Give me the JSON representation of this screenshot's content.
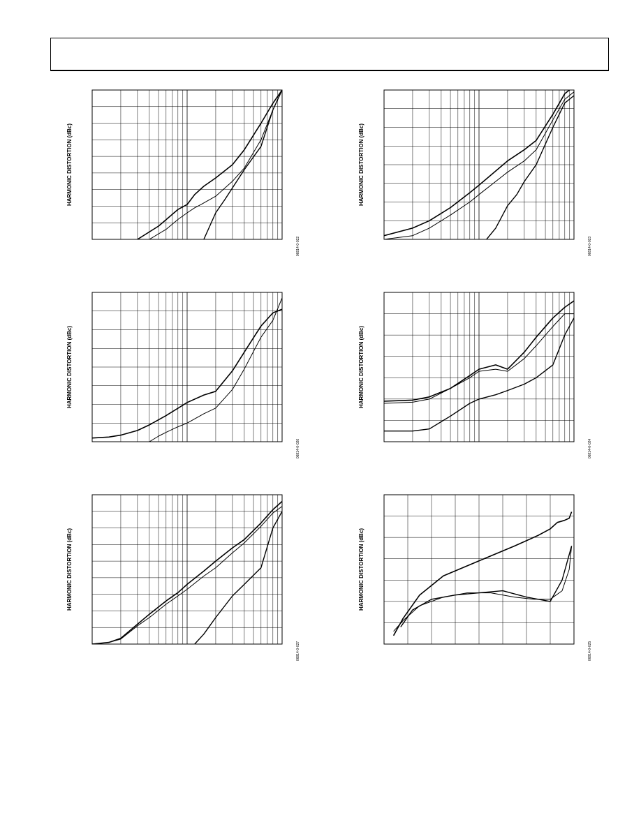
{
  "page": {
    "header_label": ""
  },
  "colors": {
    "ink": "#000000",
    "paper": "#ffffff"
  },
  "chart_data": [
    {
      "id": "plot-1",
      "type": "line",
      "ylabel": "HARMONIC DISTORTION (dBc)",
      "figure_id": "06814-0-022",
      "x_scale": "log",
      "grid": "log-x",
      "xlim": [
        1,
        100
      ],
      "ylim": [
        0,
        9
      ],
      "series": [
        {
          "x": [
            3,
            5,
            8,
            10,
            12,
            15,
            20,
            30,
            40,
            60,
            80,
            100
          ],
          "y": [
            0,
            0.8,
            1.8,
            2.1,
            2.7,
            3.2,
            3.7,
            4.5,
            5.4,
            7.0,
            8.2,
            9.0
          ]
        },
        {
          "x": [
            4,
            6,
            8,
            10,
            12,
            14,
            20,
            30,
            40,
            60,
            80,
            100
          ],
          "y": [
            0,
            0.6,
            1.2,
            1.6,
            1.9,
            2.1,
            2.6,
            3.5,
            4.3,
            6.0,
            7.8,
            9.0
          ]
        },
        {
          "x": [
            15,
            20,
            25,
            30,
            40,
            60,
            80,
            100
          ],
          "y": [
            0,
            1.6,
            2.4,
            3.1,
            4.2,
            5.6,
            7.8,
            9.0
          ]
        }
      ]
    },
    {
      "id": "plot-2",
      "type": "line",
      "ylabel": "HARMONIC DISTORTION (dBc)",
      "figure_id": "06814-0-023",
      "x_scale": "log",
      "grid": "log-x",
      "xlim": [
        1,
        100
      ],
      "ylim": [
        0,
        8
      ],
      "series": [
        {
          "x": [
            1,
            2,
            3,
            5,
            8,
            10,
            20,
            30,
            40,
            60,
            80,
            100
          ],
          "y": [
            0.2,
            0.6,
            1.0,
            1.7,
            2.5,
            2.9,
            4.2,
            4.8,
            5.3,
            6.7,
            7.8,
            8.2
          ]
        },
        {
          "x": [
            1,
            2,
            3,
            5,
            8,
            10,
            20,
            30,
            40,
            60,
            80,
            100
          ],
          "y": [
            0,
            0.2,
            0.6,
            1.3,
            2.0,
            2.4,
            3.6,
            4.2,
            4.8,
            6.4,
            7.5,
            7.9
          ]
        },
        {
          "x": [
            12,
            15,
            20,
            25,
            30,
            40,
            60,
            80,
            100
          ],
          "y": [
            0,
            0.6,
            1.8,
            2.4,
            3.1,
            4.0,
            6.0,
            7.3,
            7.7
          ]
        }
      ]
    },
    {
      "id": "plot-3",
      "type": "line",
      "ylabel": "HARMONIC DISTORTION (dBc)",
      "figure_id": "06814-0-026",
      "x_scale": "log",
      "grid": "log-x",
      "xlim": [
        1,
        100
      ],
      "ylim": [
        0,
        8
      ],
      "series": [
        {
          "x": [
            1,
            1.5,
            2,
            3,
            4,
            6,
            10,
            15,
            20,
            30,
            40,
            60,
            80,
            100
          ],
          "y": [
            0.2,
            0.25,
            0.35,
            0.6,
            0.9,
            1.4,
            2.1,
            2.5,
            2.7,
            3.8,
            4.8,
            6.2,
            6.9,
            7.1
          ]
        },
        {
          "x": [
            4,
            5,
            6,
            8,
            10,
            15,
            20,
            30,
            40,
            60,
            80,
            100
          ],
          "y": [
            0,
            0.3,
            0.5,
            0.8,
            1.0,
            1.5,
            1.8,
            2.8,
            3.9,
            5.6,
            6.5,
            7.7
          ]
        }
      ]
    },
    {
      "id": "plot-4",
      "type": "line",
      "ylabel": "HARMONIC DISTORTION (dBc)",
      "figure_id": "06814-0-024",
      "x_scale": "log",
      "grid": "log-x",
      "xlim": [
        1,
        100
      ],
      "ylim": [
        0,
        7
      ],
      "series": [
        {
          "x": [
            1,
            2,
            3,
            5,
            8,
            10,
            15,
            20,
            30,
            40,
            60,
            80,
            100
          ],
          "y": [
            1.9,
            1.95,
            2.1,
            2.5,
            3.1,
            3.4,
            3.6,
            3.4,
            4.2,
            4.9,
            5.8,
            6.3,
            6.6
          ]
        },
        {
          "x": [
            1,
            2,
            3,
            5,
            8,
            10,
            15,
            20,
            30,
            40,
            60,
            80,
            100
          ],
          "y": [
            1.8,
            1.85,
            2.0,
            2.5,
            3.0,
            3.3,
            3.4,
            3.3,
            3.9,
            4.5,
            5.4,
            6.0,
            6.0
          ]
        },
        {
          "x": [
            1,
            2,
            3,
            5,
            8,
            10,
            15,
            20,
            30,
            40,
            60,
            80,
            100
          ],
          "y": [
            0.5,
            0.5,
            0.6,
            1.2,
            1.8,
            2.0,
            2.2,
            2.4,
            2.7,
            3.0,
            3.6,
            5.0,
            5.8
          ]
        }
      ]
    },
    {
      "id": "plot-5",
      "type": "line",
      "ylabel": "HARMONIC DISTORTION (dBc)",
      "figure_id": "06814-0-027",
      "x_scale": "log",
      "grid": "log-x",
      "xlim": [
        1,
        100
      ],
      "ylim": [
        0,
        9
      ],
      "series": [
        {
          "x": [
            1,
            1.5,
            2,
            3,
            4,
            6,
            8,
            10,
            15,
            20,
            30,
            40,
            60,
            80,
            100
          ],
          "y": [
            0,
            0.1,
            0.35,
            1.2,
            1.8,
            2.6,
            3.1,
            3.6,
            4.4,
            5.0,
            5.8,
            6.3,
            7.3,
            8.1,
            8.6
          ]
        },
        {
          "x": [
            1,
            1.5,
            2,
            3,
            4,
            6,
            8,
            10,
            15,
            20,
            30,
            40,
            60,
            80,
            100
          ],
          "y": [
            0,
            0.1,
            0.3,
            1.1,
            1.6,
            2.4,
            2.9,
            3.3,
            4.1,
            4.6,
            5.5,
            6.1,
            7.1,
            7.9,
            8.3
          ]
        },
        {
          "x": [
            12,
            15,
            20,
            30,
            40,
            60,
            80,
            100
          ],
          "y": [
            0,
            0.6,
            1.6,
            2.9,
            3.6,
            4.6,
            7.0,
            8.0
          ]
        }
      ]
    },
    {
      "id": "plot-6",
      "type": "line",
      "ylabel": "HARMONIC DISTORTION (dBc)",
      "figure_id": "06814-0-025",
      "x_scale": "linear",
      "grid": "linear",
      "xlim": [
        0,
        8
      ],
      "ylim": [
        0,
        7
      ],
      "series": [
        {
          "x": [
            0.4,
            0.8,
            1.5,
            2.5,
            4.0,
            5.5,
            6.5,
            7.0,
            7.3,
            7.6,
            7.8,
            7.9
          ],
          "y": [
            0.4,
            1.2,
            2.3,
            3.2,
            3.9,
            4.6,
            5.1,
            5.4,
            5.7,
            5.8,
            5.9,
            6.2
          ]
        },
        {
          "x": [
            0.4,
            0.8,
            1.5,
            2.5,
            3.5,
            4.5,
            5.5,
            6.3,
            7.0,
            7.5,
            7.8,
            7.9
          ],
          "y": [
            0.6,
            1.1,
            1.8,
            2.2,
            2.4,
            2.4,
            2.2,
            2.1,
            2.1,
            2.5,
            3.5,
            4.6
          ]
        },
        {
          "x": [
            0.7,
            1.2,
            2.0,
            3.0,
            4.0,
            5.0,
            6.0,
            6.5,
            7.0,
            7.5,
            7.9
          ],
          "y": [
            0.8,
            1.6,
            2.1,
            2.3,
            2.4,
            2.5,
            2.2,
            2.1,
            2.0,
            3.0,
            4.6
          ]
        }
      ]
    }
  ]
}
